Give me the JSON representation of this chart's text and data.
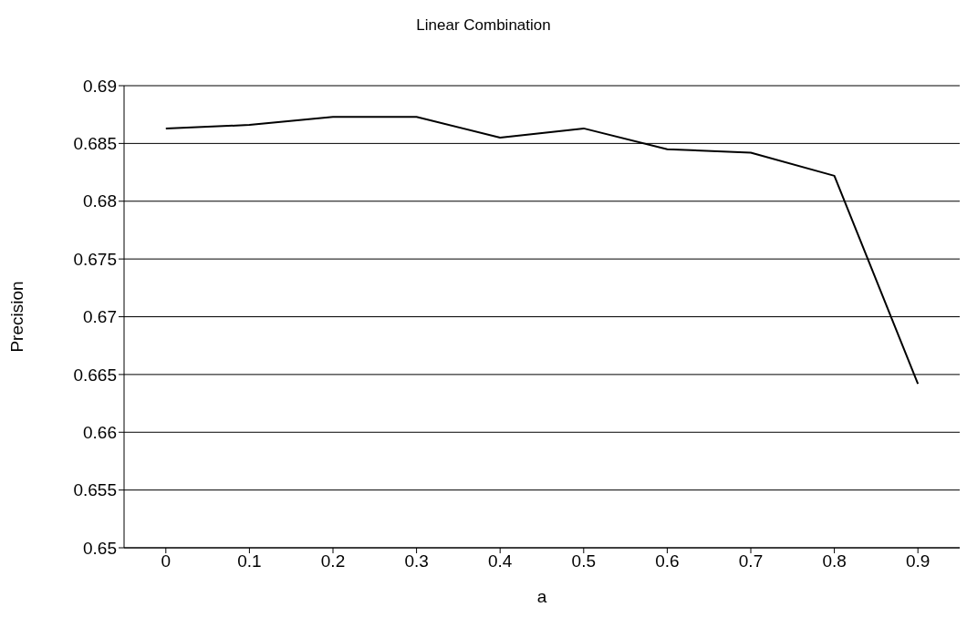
{
  "chart_data": {
    "type": "line",
    "title": "Linear Combination",
    "xlabel": "a",
    "ylabel": "Precision",
    "categories": [
      "0",
      "0.1",
      "0.2",
      "0.3",
      "0.4",
      "0.5",
      "0.6",
      "0.7",
      "0.8",
      "0.9"
    ],
    "series": [
      {
        "color": "#000000",
        "values": [
          0.6863,
          0.6866,
          0.6873,
          0.6873,
          0.6855,
          0.6863,
          0.6845,
          0.6842,
          0.6822,
          0.6642
        ]
      }
    ],
    "ylim": [
      0.65,
      0.69
    ],
    "yticks": [
      0.65,
      0.655,
      0.66,
      0.665,
      0.67,
      0.675,
      0.68,
      0.685,
      0.69
    ],
    "grid": "y",
    "legend": false,
    "marker": "none",
    "line_style": "solid"
  }
}
